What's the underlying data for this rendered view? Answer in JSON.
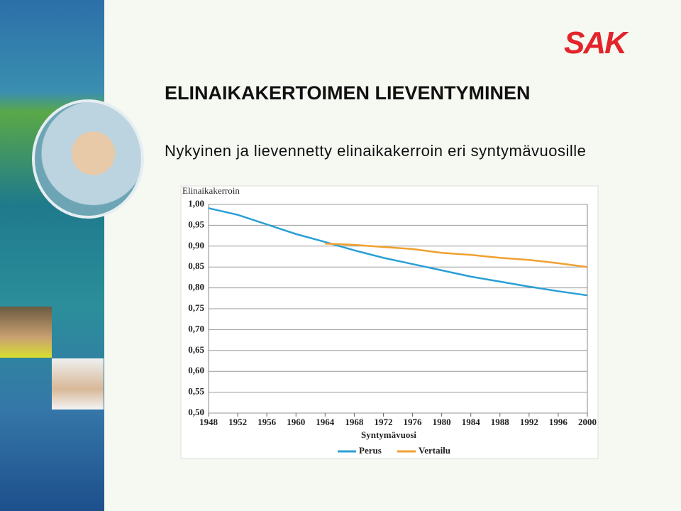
{
  "slide": {
    "logo": "SAK",
    "title": "ELINAIKAKERTOIMEN LIEVENTYMINEN",
    "subtitle": "Nykyinen ja lievennetty elinaikakerroin eri syntymävuosille"
  },
  "chart_data": {
    "type": "line",
    "y_label": "Elinaikakerroin",
    "x_label": "Syntymävuosi",
    "x": [
      1948,
      1952,
      1956,
      1960,
      1964,
      1968,
      1972,
      1976,
      1980,
      1984,
      1988,
      1992,
      1996,
      2000
    ],
    "series": [
      {
        "name": "Perus",
        "color": "#2a9fd6",
        "values": [
          0.991,
          0.975,
          0.952,
          0.929,
          0.91,
          0.89,
          0.872,
          0.857,
          0.842,
          0.827,
          0.815,
          0.803,
          0.792,
          0.782
        ]
      },
      {
        "name": "Vertailu",
        "color": "#f0a030",
        "values": [
          null,
          null,
          null,
          null,
          0.906,
          0.903,
          0.898,
          0.893,
          0.884,
          0.879,
          0.872,
          0.867,
          0.859,
          0.85
        ]
      }
    ],
    "xlim": [
      1948,
      2000
    ],
    "xticks": [
      1948,
      1952,
      1956,
      1960,
      1964,
      1968,
      1972,
      1976,
      1980,
      1984,
      1988,
      1992,
      1996,
      2000
    ],
    "ylim": [
      0.5,
      1.0
    ],
    "yticks": [
      {
        "value": 0.5,
        "label": "0,50"
      },
      {
        "value": 0.55,
        "label": "0,55"
      },
      {
        "value": 0.6,
        "label": "0,60"
      },
      {
        "value": 0.65,
        "label": "0,65"
      },
      {
        "value": 0.7,
        "label": "0,70"
      },
      {
        "value": 0.75,
        "label": "0,75"
      },
      {
        "value": 0.8,
        "label": "0,80"
      },
      {
        "value": 0.85,
        "label": "0,85"
      },
      {
        "value": 0.9,
        "label": "0,90"
      },
      {
        "value": 0.95,
        "label": "0,95"
      },
      {
        "value": 1.0,
        "label": "1,00"
      }
    ],
    "grid": true,
    "legend": "bottom"
  }
}
